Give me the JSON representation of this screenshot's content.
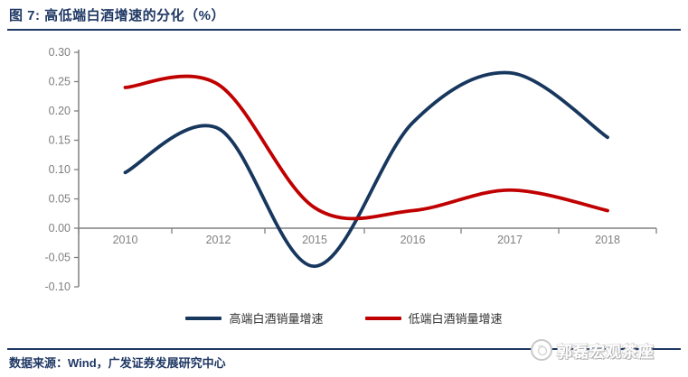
{
  "figure": {
    "title": "图 7: 高低端白酒增速的分化（%）",
    "source": "数据来源：Wind，广发证券发展研究中心",
    "watermark": "郭磊宏观茶座"
  },
  "colors": {
    "high_end_line": "#17375e",
    "low_end_line": "#c00000",
    "axis": "#808080",
    "tick_label": "#7f7f7f",
    "rule": "#1f3864",
    "legend_text": "#333333"
  },
  "chart_data": {
    "type": "line",
    "smoothed": true,
    "title": "图 7: 高低端白酒增速的分化（%）",
    "categories": [
      "2010",
      "2012",
      "2015",
      "2016",
      "2017",
      "2018"
    ],
    "series": [
      {
        "name": "高端白酒销量增速",
        "color": "#17375e",
        "values": [
          0.095,
          0.17,
          -0.065,
          0.18,
          0.265,
          0.155
        ]
      },
      {
        "name": "低端白酒销量增速",
        "color": "#c00000",
        "values": [
          0.24,
          0.245,
          0.035,
          0.03,
          0.065,
          0.03
        ]
      }
    ],
    "xlabel": "",
    "ylabel": "",
    "ylim": [
      -0.1,
      0.3
    ],
    "ytick_step": 0.05,
    "ytick_format": "2dp",
    "grid": false,
    "legend_position": "bottom"
  }
}
